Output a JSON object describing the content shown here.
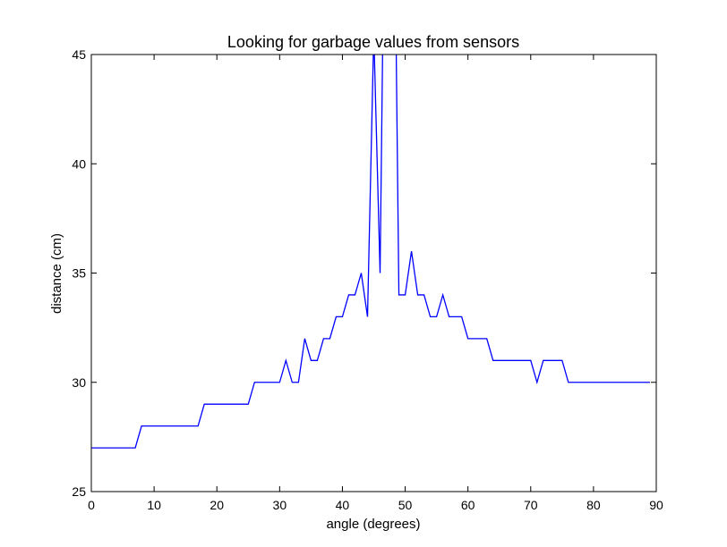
{
  "chart_data": {
    "type": "line",
    "title": "Looking for garbage values from sensors",
    "xlabel": "angle (degrees)",
    "ylabel": "distance (cm)",
    "xlim": [
      0,
      90
    ],
    "ylim": [
      25,
      45
    ],
    "xticks": [
      0,
      10,
      20,
      30,
      40,
      50,
      60,
      70,
      80,
      90
    ],
    "yticks": [
      25,
      30,
      35,
      40,
      45
    ],
    "grid": false,
    "series": [
      {
        "name": "distance",
        "color": "#0000ff",
        "x": [
          0,
          1,
          2,
          3,
          4,
          5,
          6,
          7,
          8,
          9,
          10,
          11,
          12,
          13,
          14,
          15,
          16,
          17,
          18,
          19,
          20,
          21,
          22,
          23,
          24,
          25,
          26,
          27,
          28,
          29,
          30,
          31,
          32,
          33,
          34,
          35,
          36,
          37,
          38,
          39,
          40,
          41,
          42,
          43,
          44,
          45,
          46,
          47,
          48,
          49,
          50,
          51,
          52,
          53,
          54,
          55,
          56,
          57,
          58,
          59,
          60,
          61,
          62,
          63,
          64,
          65,
          66,
          67,
          68,
          69,
          70,
          71,
          72,
          73,
          74,
          75,
          76,
          77,
          78,
          79,
          80,
          81,
          82,
          83,
          84,
          85,
          86,
          87,
          88,
          89
        ],
        "y": [
          27,
          27,
          27,
          27,
          27,
          27,
          27,
          27,
          28,
          28,
          28,
          28,
          28,
          28,
          28,
          28,
          28,
          28,
          29,
          29,
          29,
          29,
          29,
          29,
          29,
          29,
          30,
          30,
          30,
          30,
          30,
          31,
          30,
          30,
          32,
          31,
          31,
          32,
          32,
          33,
          33,
          34,
          34,
          35,
          33,
          46,
          35,
          60,
          60,
          34,
          34,
          36,
          34,
          34,
          33,
          33,
          34,
          33,
          33,
          33,
          32,
          32,
          32,
          32,
          31,
          31,
          31,
          31,
          31,
          31,
          31,
          30,
          31,
          31,
          31,
          31,
          30,
          30,
          30,
          30,
          30,
          30,
          30,
          30,
          30,
          30,
          30,
          30,
          30,
          30
        ]
      }
    ]
  }
}
